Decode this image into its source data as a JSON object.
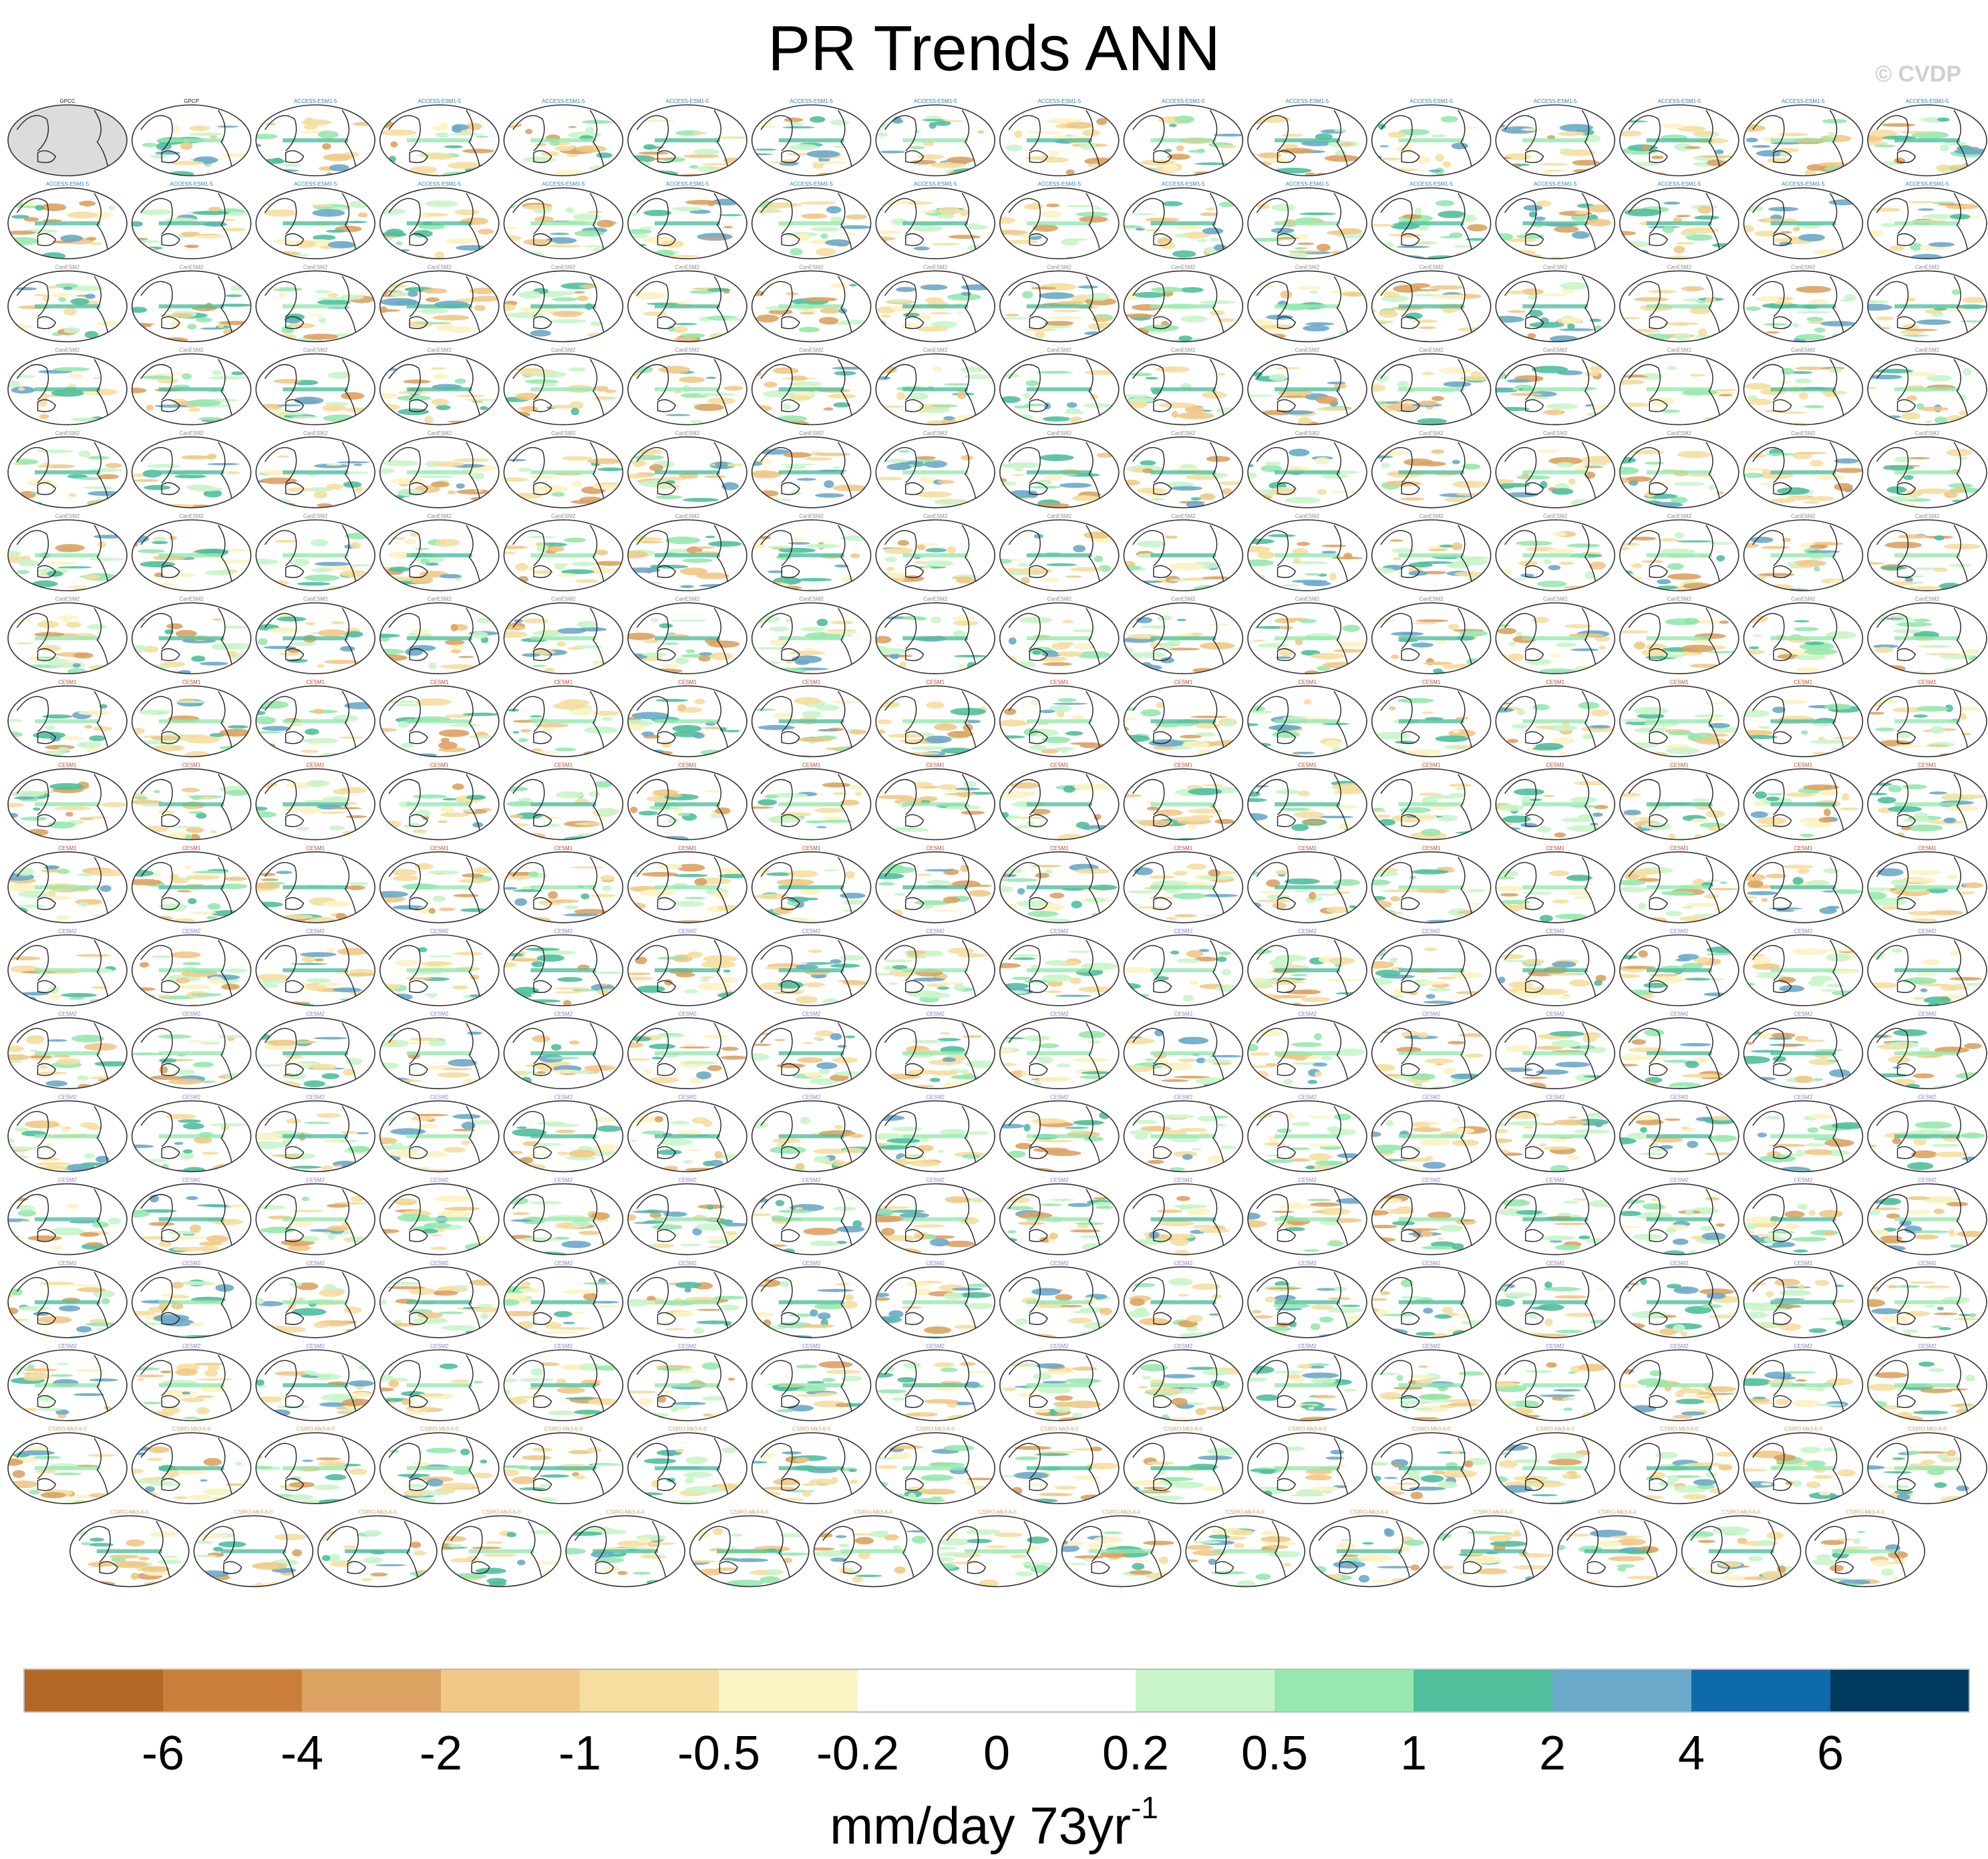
{
  "title": "PR Trends ANN",
  "watermark": "© CVDP",
  "colors": {
    "land": "#dcdcdc",
    "coast": "#222222",
    "label_text": "#222222",
    "label_access": "#2f7fb3",
    "label_canesm": "#8a8a8a",
    "label_cesm": "#b5492c",
    "label_cesm2": "#8f7bc4",
    "label_csiro": "#c9a46a"
  },
  "panel_rows": [
    {
      "label": "ACCESS-ESM1-5",
      "count": 16
    },
    {
      "label": "ACCESS-ESM1-5",
      "count": 16
    },
    {
      "label": "CanESM2",
      "count": 16
    },
    {
      "label": "CanESM2",
      "count": 16
    },
    {
      "label": "CanESM2",
      "count": 16
    },
    {
      "label": "CanESM2",
      "count": 16
    },
    {
      "label": "CanESM2",
      "count": 16
    },
    {
      "label": "CESM1",
      "count": 16
    },
    {
      "label": "CESM1",
      "count": 16
    },
    {
      "label": "CESM1",
      "count": 16
    },
    {
      "label": "CESM2",
      "count": 16
    },
    {
      "label": "CESM2",
      "count": 16
    },
    {
      "label": "CESM2",
      "count": 16
    },
    {
      "label": "CESM2",
      "count": 16
    },
    {
      "label": "CESM2",
      "count": 16
    },
    {
      "label": "CESM2",
      "count": 16
    },
    {
      "label": "CSIRO-Mk3-6-0",
      "count": 16
    },
    {
      "label": "CSIRO-Mk3-6-0",
      "count": 15
    }
  ],
  "first_panels": [
    "GPCC",
    "GPCP"
  ],
  "chart_data": {
    "type": "heatmap",
    "title": "PR Trends ANN",
    "variable": "PR",
    "season": "ANN",
    "map_panels": 287,
    "colorbar": {
      "units_base": "mm/day 73yr",
      "units_exponent": "-1",
      "tick_labels": [
        "-6",
        "-4",
        "-2",
        "-1",
        "-0.5",
        "-0.2",
        "0",
        "0.2",
        "0.5",
        "1",
        "2",
        "4",
        "6"
      ],
      "levels": [
        -6,
        -4,
        -2,
        -1,
        -0.5,
        -0.2,
        0,
        0.2,
        0.5,
        1,
        2,
        4,
        6
      ],
      "bin_colors": [
        "#b36825",
        "#c97f3a",
        "#dba262",
        "#f1c886",
        "#f5dea0",
        "#fcf3c2",
        "#ffffff",
        "#ffffff",
        "#c9f5c9",
        "#96e8ae",
        "#4fbf9c",
        "#6aa9c9",
        "#0f6aab",
        "#003a5e"
      ]
    }
  }
}
